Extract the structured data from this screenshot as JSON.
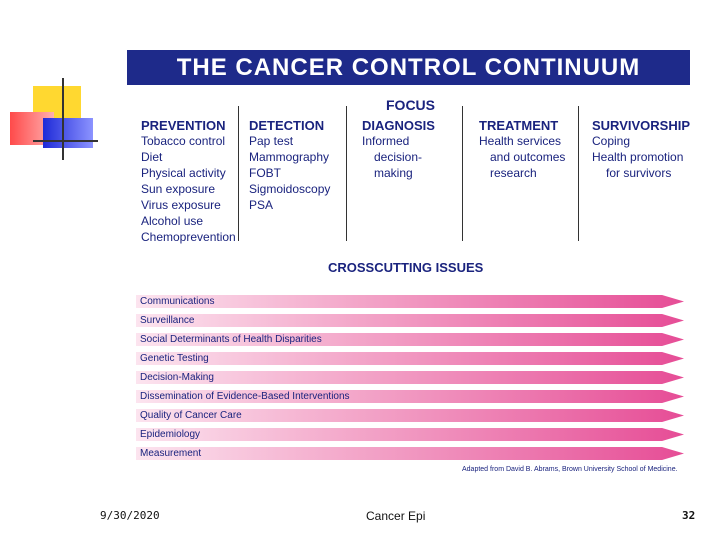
{
  "slide": {
    "title": "THE CANCER CONTROL CONTINUUM",
    "phases": [
      {
        "header": "PREVENTION",
        "items": [
          "Tobacco control",
          "Diet",
          "Physical activity",
          "Sun exposure",
          "Virus exposure",
          "Alcohol use",
          "Chemoprevention"
        ]
      },
      {
        "header": "DETECTION",
        "items": [
          "Pap test",
          "Mammography",
          "FOBT",
          "Sigmoidoscopy",
          "PSA"
        ]
      },
      {
        "header_top": "FOCUS",
        "header": "DIAGNOSIS",
        "items": [
          "Informed",
          "decision-",
          "making"
        ]
      },
      {
        "header": "TREATMENT",
        "items": [
          "Health services",
          "and outcomes",
          "research"
        ]
      },
      {
        "header": "SURVIVORSHIP",
        "items": [
          "Coping",
          "Health promotion",
          "for survivors"
        ]
      }
    ],
    "crosscutting_title": "CROSSCUTTING ISSUES",
    "crosscutting_issues": [
      "Communications",
      "Surveillance",
      "Social Determinants of Health Disparities",
      "Genetic Testing",
      "Decision-Making",
      "Dissemination of Evidence-Based Interventions",
      "Quality of Cancer Care",
      "Epidemiology",
      "Measurement"
    ],
    "credit": "Adapted from David B. Abrams, Brown University School of Medicine."
  },
  "footer": {
    "date": "9/30/2020",
    "title": "Cancer Epi",
    "page": "32"
  }
}
